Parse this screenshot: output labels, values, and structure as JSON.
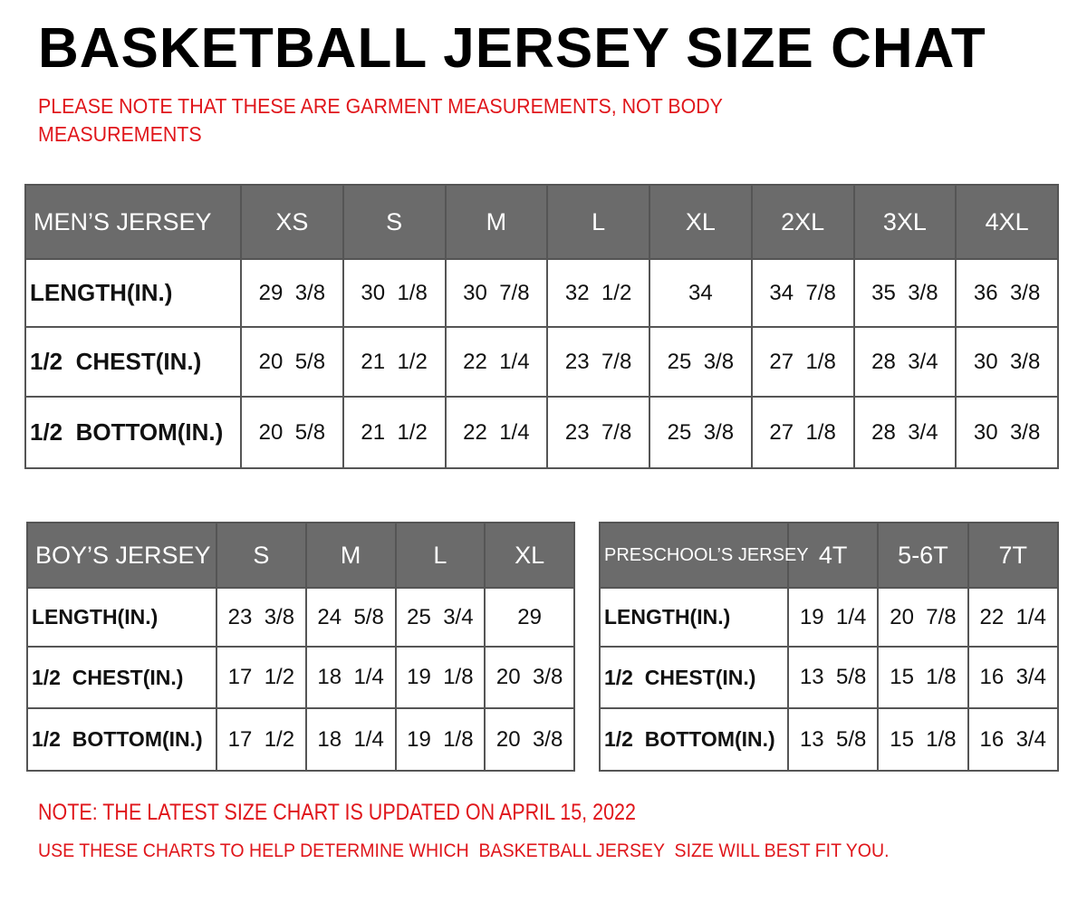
{
  "title": "BASKETBALL JERSEY SIZE CHAT",
  "note": "PLEASE NOTE THAT THESE ARE GARMENT MEASUREMENTS, NOT BODY MEASUREMENTS",
  "colors": {
    "header_bg": "#6b6b6b",
    "note_red": "#e0161b"
  },
  "tables": {
    "mens": {
      "header": [
        "MEN’S JERSEY",
        "XS",
        "S",
        "M",
        "L",
        "XL",
        "2XL",
        "3XL",
        "4XL"
      ],
      "rows": [
        [
          "LENGTH(IN.)",
          "29  3/8",
          "30  1/8",
          "30  7/8",
          "32  1/2",
          "34",
          "34  7/8",
          "35  3/8",
          "36  3/8"
        ],
        [
          "1/2  CHEST(IN.)",
          "20  5/8",
          "21  1/2",
          "22  1/4",
          "23  7/8",
          "25  3/8",
          "27  1/8",
          "28  3/4",
          "30  3/8"
        ],
        [
          "1/2  BOTTOM(IN.)",
          "20  5/8",
          "21  1/2",
          "22  1/4",
          "23  7/8",
          "25  3/8",
          "27  1/8",
          "28  3/4",
          "30  3/8"
        ]
      ]
    },
    "boys": {
      "header": [
        "BOY’S JERSEY",
        "S",
        "M",
        "L",
        "XL"
      ],
      "rows": [
        [
          "LENGTH(IN.)",
          "23  3/8",
          "24  5/8",
          "25  3/4",
          "29"
        ],
        [
          "1/2  CHEST(IN.)",
          "17  1/2",
          "18  1/4",
          "19  1/8",
          "20  3/8"
        ],
        [
          "1/2  BOTTOM(IN.)",
          "17  1/2",
          "18  1/4",
          "19  1/8",
          "20  3/8"
        ]
      ]
    },
    "pre": {
      "header": [
        "PRESCHOOL’S JERSEY",
        "4T",
        "5-6T",
        "7T"
      ],
      "rows": [
        [
          "LENGTH(IN.)",
          "19  1/4",
          "20  7/8",
          "22  1/4"
        ],
        [
          "1/2  CHEST(IN.)",
          "13  5/8",
          "15  1/8",
          "16  3/4"
        ],
        [
          "1/2  BOTTOM(IN.)",
          "13  5/8",
          "15  1/8",
          "16  3/4"
        ]
      ]
    }
  },
  "footer": {
    "updated": "NOTE: THE LATEST SIZE CHART IS UPDATED ON APRIL 15, 2022",
    "advice": "USE THESE CHARTS TO HELP DETERMINE WHICH  BASKETBALL JERSEY  SIZE WILL BEST FIT YOU."
  }
}
